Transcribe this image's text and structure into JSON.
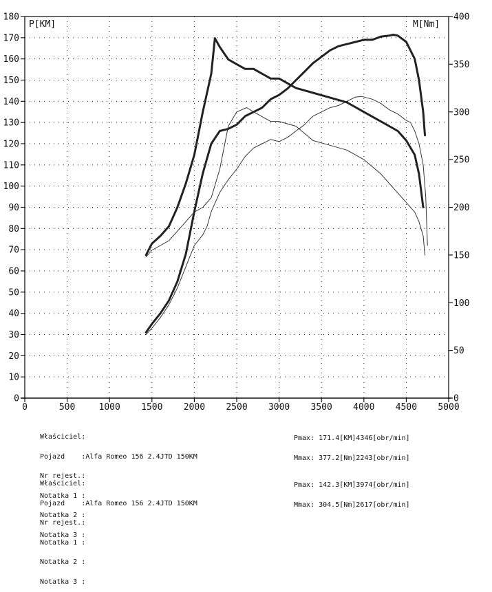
{
  "chart_data": {
    "type": "line",
    "xlabel": "",
    "y_left_label": "P[KM]",
    "y_right_label": "M[Nm]",
    "xlim": [
      0,
      5000
    ],
    "ylim_left": [
      0,
      180
    ],
    "ylim_right": [
      0,
      400
    ],
    "x_ticks": [
      0,
      500,
      1000,
      1500,
      2000,
      2500,
      3000,
      3500,
      4000,
      4500,
      5000
    ],
    "y_left_ticks": [
      0,
      10,
      20,
      30,
      40,
      50,
      60,
      70,
      80,
      90,
      100,
      110,
      120,
      130,
      140,
      150,
      160,
      170,
      180
    ],
    "y_right_ticks": [
      0,
      50,
      100,
      150,
      200,
      250,
      300,
      350,
      400
    ],
    "grid": true,
    "series": [
      {
        "axis": "left",
        "style": "thick",
        "x": [
          1430,
          1500,
          1600,
          1700,
          1800,
          1900,
          2000,
          2100,
          2200,
          2300,
          2400,
          2500,
          2600,
          2700,
          2800,
          2900,
          3000,
          3100,
          3200,
          3300,
          3400,
          3500,
          3600,
          3700,
          3800,
          3900,
          4000,
          4100,
          4200,
          4300,
          4346,
          4400,
          4500,
          4600,
          4650,
          4700,
          4720
        ],
        "y": [
          31,
          35,
          40,
          46,
          55,
          68,
          88,
          106,
          120,
          126,
          127,
          129,
          133,
          135,
          137,
          141,
          143,
          146,
          150,
          154,
          158,
          161,
          164,
          166,
          167,
          168,
          169,
          169,
          170.5,
          171,
          171.4,
          171,
          168,
          160,
          150,
          135,
          124
        ]
      },
      {
        "axis": "left",
        "style": "thin",
        "x": [
          1430,
          1500,
          1600,
          1700,
          1800,
          1900,
          2000,
          2100,
          2150,
          2200,
          2300,
          2400,
          2500,
          2600,
          2700,
          2800,
          2900,
          3000,
          3100,
          3200,
          3300,
          3400,
          3500,
          3600,
          3700,
          3800,
          3900,
          3974,
          4100,
          4200,
          4300,
          4400,
          4500,
          4550,
          4600,
          4650,
          4700,
          4730,
          4750
        ],
        "y": [
          30,
          33,
          38,
          44,
          52,
          62,
          72,
          77,
          81,
          88,
          97,
          103,
          108,
          114,
          118,
          120,
          122,
          121,
          123,
          126,
          129,
          133,
          135,
          137,
          138,
          140,
          142,
          142.3,
          141,
          139,
          136,
          134,
          131,
          130,
          126,
          120,
          110,
          95,
          72
        ]
      },
      {
        "axis": "right",
        "style": "thick",
        "x": [
          1430,
          1500,
          1600,
          1700,
          1800,
          1900,
          2000,
          2100,
          2200,
          2243,
          2300,
          2400,
          2500,
          2600,
          2700,
          2800,
          2900,
          3000,
          3200,
          3400,
          3600,
          3800,
          4000,
          4200,
          4400,
          4500,
          4600,
          4650,
          4700
        ],
        "y": [
          150,
          162,
          170,
          180,
          200,
          225,
          255,
          300,
          340,
          377.2,
          368,
          355,
          350,
          345,
          345,
          340,
          335,
          335,
          325,
          320,
          315,
          310,
          300,
          290,
          280,
          270,
          255,
          235,
          200
        ]
      },
      {
        "axis": "right",
        "style": "thin",
        "x": [
          1430,
          1500,
          1600,
          1700,
          1800,
          1900,
          2000,
          2100,
          2200,
          2300,
          2400,
          2500,
          2617,
          2700,
          2800,
          2900,
          3000,
          3200,
          3400,
          3600,
          3800,
          4000,
          4200,
          4400,
          4500,
          4600,
          4650,
          4700,
          4720
        ],
        "y": [
          148,
          155,
          160,
          165,
          175,
          185,
          195,
          200,
          210,
          240,
          285,
          300,
          304.5,
          300,
          295,
          290,
          290,
          285,
          270,
          265,
          260,
          250,
          235,
          215,
          205,
          195,
          185,
          170,
          150
        ]
      }
    ]
  },
  "info1": {
    "lines": [
      "Właściciel:",
      "Pojazd    :Alfa Romeo 156 2.4JTD 150KM",
      "Nr rejest.:",
      "Notatka 1 :",
      "Notatka 2 :",
      "Notatka 3 :"
    ],
    "pmax": "Pmax: 171.4[KM]4346[obr/min]",
    "mmax": "Mmax: 377.2[Nm]2243[obr/min]"
  },
  "info2": {
    "lines": [
      "Właściciel:",
      "Pojazd    :Alfa Romeo 156 2.4JTD 150KM",
      "Nr rejest.:",
      "Notatka 1 :",
      "Notatka 2 :",
      "Notatka 3 :"
    ],
    "pmax": "Pmax: 142.3[KM]3974[obr/min]",
    "mmax": "Mmax: 304.5[Nm]2617[obr/min]"
  }
}
